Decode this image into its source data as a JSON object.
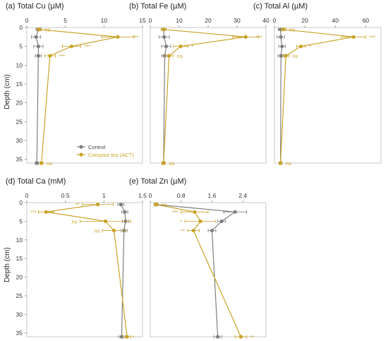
{
  "colors": {
    "control": "#7f7f7f",
    "compost": "#c9a227",
    "frame": "#c8c8c8"
  },
  "y_axis_label": "Depth (cm)",
  "legend": {
    "control": "Control",
    "compost": "Compost tea (ACT)",
    "placement": "bottom-left of panel (a)"
  },
  "chart_data": [
    {
      "id": "a",
      "type": "line",
      "title": "(a) Total Cu (µM)",
      "xlim": [
        0,
        15
      ],
      "xticks": [
        "0",
        "5",
        "10",
        "15"
      ],
      "ylim": [
        0,
        36
      ],
      "yticks": [
        "0",
        "5",
        "10",
        "15",
        "20",
        "25",
        "30",
        "35"
      ],
      "depth": [
        0.5,
        2.5,
        5,
        7.5,
        36
      ],
      "series": [
        {
          "name": "Control",
          "values": [
            1.5,
            1.2,
            1.5,
            1.5,
            1.3
          ],
          "err": [
            0.3,
            0.6,
            0.6,
            0.4,
            0.2
          ]
        },
        {
          "name": "Compost tea (ACT)",
          "values": [
            1.6,
            11.8,
            5.8,
            3.0,
            1.9
          ],
          "err": [
            0.3,
            2.1,
            1.2,
            0.7,
            0.2
          ]
        }
      ],
      "significance": [
        "ns",
        "***",
        "***",
        "***",
        "ns"
      ]
    },
    {
      "id": "b",
      "type": "line",
      "title": "(b) Total Fe (µM)",
      "xlim": [
        0,
        40
      ],
      "xticks": [
        "0",
        "10",
        "20",
        "30",
        "40"
      ],
      "ylim": [
        0,
        36
      ],
      "yticks": [],
      "depth": [
        0.5,
        2.5,
        5,
        7.5,
        36
      ],
      "series": [
        {
          "name": "Control",
          "values": [
            4.6,
            4.8,
            5.5,
            5.0,
            4.6
          ],
          "err": [
            0.8,
            1.8,
            1.6,
            1.0,
            0.5
          ]
        },
        {
          "name": "Compost tea (ACT)",
          "values": [
            4.6,
            33.0,
            10.5,
            6.5,
            4.6
          ],
          "err": [
            0.8,
            4.5,
            2.5,
            1.5,
            0.6
          ]
        }
      ],
      "significance": [
        "",
        "***",
        "*",
        "ns",
        "ns"
      ]
    },
    {
      "id": "c",
      "type": "line",
      "title": "(c) Total Al (µM)",
      "xlim": [
        0,
        70
      ],
      "xticks": [
        "0",
        "20",
        "40",
        "60"
      ],
      "ylim": [
        0,
        36
      ],
      "yticks": [],
      "depth": [
        0.5,
        2.5,
        5,
        7.5,
        36
      ],
      "series": [
        {
          "name": "Control",
          "values": [
            4.0,
            4.2,
            5.0,
            4.3,
            4.0
          ],
          "err": [
            1.5,
            2.5,
            2.2,
            2.0,
            1.0
          ]
        },
        {
          "name": "Compost tea (ACT)",
          "values": [
            6.0,
            52.0,
            17.5,
            7.5,
            4.0
          ],
          "err": [
            1.5,
            8.0,
            3.0,
            2.0,
            1.0
          ]
        }
      ],
      "significance": [
        "ns",
        "***",
        "*",
        "ns",
        "ns"
      ]
    },
    {
      "id": "d",
      "type": "line",
      "title": "(d) Total Ca (mM)",
      "xlim": [
        0,
        1.5
      ],
      "xticks": [
        "0",
        "0.5",
        "1",
        "1.5"
      ],
      "ylim": [
        0,
        36
      ],
      "yticks": [
        "0",
        "5",
        "10",
        "15",
        "20",
        "25",
        "30",
        "35"
      ],
      "depth": [
        0.5,
        2.5,
        5,
        7.5,
        36
      ],
      "series": [
        {
          "name": "Control",
          "values": [
            1.22,
            1.27,
            1.28,
            1.26,
            1.23
          ],
          "err": [
            0.04,
            0.04,
            0.04,
            0.04,
            0.04
          ]
        },
        {
          "name": "Compost tea (ACT)",
          "values": [
            0.92,
            0.25,
            1.02,
            1.13,
            1.3
          ],
          "err": [
            0.2,
            0.1,
            0.33,
            0.15,
            0.05
          ]
        }
      ],
      "significance": [
        "**",
        "***",
        "ns",
        "ns",
        "*"
      ]
    },
    {
      "id": "e",
      "type": "line",
      "title": "(e) Total Zn (µM)",
      "xlim": [
        0,
        3.0
      ],
      "xticks": [
        "0",
        "0.8",
        "1.6",
        "2.4"
      ],
      "ylim": [
        0,
        36
      ],
      "yticks": [],
      "depth": [
        0.5,
        2.5,
        5,
        7.5,
        36
      ],
      "series": [
        {
          "name": "Control",
          "values": [
            0.15,
            2.2,
            1.85,
            1.6,
            1.75
          ],
          "err": [
            0.05,
            0.3,
            0.1,
            0.1,
            0.1
          ]
        },
        {
          "name": "Compost tea (ACT)",
          "values": [
            0.15,
            1.15,
            1.3,
            1.12,
            2.35
          ],
          "err": [
            0.05,
            0.35,
            0.4,
            0.15,
            0.15
          ]
        }
      ],
      "significance": [
        "ns",
        "***",
        "*",
        "**",
        "**"
      ]
    }
  ]
}
